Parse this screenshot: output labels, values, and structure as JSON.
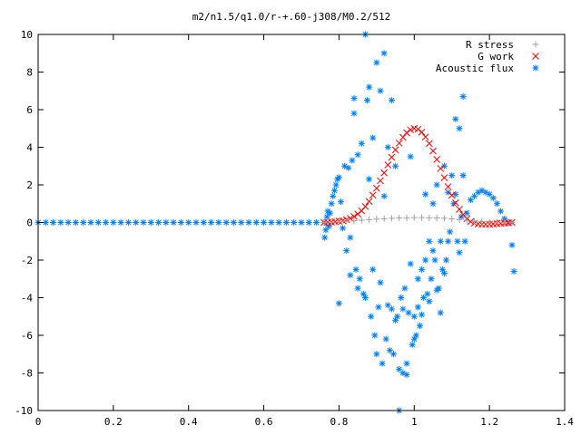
{
  "chart_data": {
    "type": "scatter",
    "title": "m2/n1.5/q1.0/r-+.60-j308/M0.2/512",
    "xlabel": "",
    "ylabel": "",
    "xlim": [
      0,
      1.4
    ],
    "ylim": [
      -10,
      10
    ],
    "x_ticks": [
      0,
      0.2,
      0.4,
      0.6,
      0.8,
      1,
      1.2,
      1.4
    ],
    "x_tick_labels": [
      "0",
      "0.2",
      "0.4",
      "0.6",
      "0.8",
      "1",
      "1.2",
      "1.4"
    ],
    "y_ticks": [
      -10,
      -8,
      -6,
      -4,
      -2,
      0,
      2,
      4,
      6,
      8,
      10
    ],
    "y_tick_labels": [
      "-10",
      "-8",
      "-6",
      "-4",
      "-2",
      "0",
      "2",
      "4",
      "6",
      "8",
      "10"
    ],
    "grid": false,
    "legend_position": "top-right",
    "series": [
      {
        "name": "R stress",
        "marker": "plus",
        "color": "#a0a0a0",
        "x": [
          0.76,
          0.78,
          0.8,
          0.82,
          0.84,
          0.86,
          0.88,
          0.9,
          0.92,
          0.94,
          0.96,
          0.98,
          1.0,
          1.02,
          1.04,
          1.06,
          1.08,
          1.1,
          1.12,
          1.14,
          1.16,
          1.18,
          1.2,
          1.22,
          1.24,
          1.26
        ],
        "y": [
          0.0,
          0.01,
          0.03,
          0.06,
          0.09,
          0.12,
          0.15,
          0.18,
          0.2,
          0.22,
          0.24,
          0.25,
          0.26,
          0.26,
          0.25,
          0.24,
          0.22,
          0.19,
          0.15,
          0.11,
          0.07,
          0.04,
          0.02,
          0.01,
          0.0,
          0.0
        ]
      },
      {
        "name": "G work",
        "marker": "cross",
        "color": "#ff0000",
        "x": [
          0.76,
          0.77,
          0.78,
          0.79,
          0.8,
          0.81,
          0.82,
          0.83,
          0.84,
          0.85,
          0.86,
          0.87,
          0.88,
          0.89,
          0.9,
          0.91,
          0.92,
          0.93,
          0.94,
          0.95,
          0.96,
          0.97,
          0.98,
          0.99,
          1.0,
          1.01,
          1.02,
          1.03,
          1.04,
          1.05,
          1.06,
          1.07,
          1.08,
          1.09,
          1.1,
          1.11,
          1.12,
          1.13,
          1.14,
          1.15,
          1.16,
          1.17,
          1.18,
          1.19,
          1.2,
          1.21,
          1.22,
          1.23,
          1.24,
          1.25,
          1.26
        ],
        "y": [
          0.0,
          0.01,
          0.02,
          0.04,
          0.07,
          0.1,
          0.15,
          0.22,
          0.32,
          0.45,
          0.62,
          0.85,
          1.12,
          1.45,
          1.82,
          2.22,
          2.64,
          3.06,
          3.47,
          3.86,
          4.22,
          4.53,
          4.77,
          4.93,
          5.0,
          4.96,
          4.8,
          4.55,
          4.2,
          3.8,
          3.35,
          2.87,
          2.38,
          1.9,
          1.45,
          1.05,
          0.7,
          0.42,
          0.2,
          0.05,
          -0.04,
          -0.08,
          -0.1,
          -0.1,
          -0.09,
          -0.08,
          -0.06,
          -0.05,
          -0.03,
          -0.02,
          0.0
        ]
      },
      {
        "name": "Acoustic flux",
        "marker": "star",
        "color": "#0080ff",
        "x": [
          0.0,
          0.02,
          0.04,
          0.06,
          0.08,
          0.1,
          0.12,
          0.14,
          0.16,
          0.18,
          0.2,
          0.22,
          0.24,
          0.26,
          0.28,
          0.3,
          0.32,
          0.34,
          0.36,
          0.38,
          0.4,
          0.42,
          0.44,
          0.46,
          0.48,
          0.5,
          0.52,
          0.54,
          0.56,
          0.58,
          0.6,
          0.62,
          0.64,
          0.66,
          0.68,
          0.7,
          0.72,
          0.74,
          0.76,
          0.762,
          0.765,
          0.768,
          0.77,
          0.773,
          0.776,
          0.78,
          0.784,
          0.788,
          0.792,
          0.796,
          0.8,
          0.805,
          0.81,
          0.815,
          0.82,
          0.825,
          0.83,
          0.835,
          0.84,
          0.845,
          0.85,
          0.855,
          0.86,
          0.865,
          0.87,
          0.875,
          0.88,
          0.885,
          0.89,
          0.895,
          0.9,
          0.905,
          0.91,
          0.915,
          0.92,
          0.925,
          0.93,
          0.935,
          0.94,
          0.945,
          0.95,
          0.955,
          0.96,
          0.965,
          0.97,
          0.975,
          0.98,
          0.985,
          0.99,
          0.995,
          1.0,
          1.005,
          1.01,
          1.015,
          1.02,
          1.025,
          1.03,
          1.035,
          1.04,
          1.045,
          1.05,
          1.055,
          1.06,
          1.065,
          1.07,
          1.075,
          1.08,
          1.085,
          1.09,
          1.095,
          1.1,
          1.105,
          1.11,
          1.115,
          1.12,
          1.125,
          1.13,
          1.135,
          1.14,
          1.15,
          1.16,
          1.17,
          1.18,
          1.19,
          1.2,
          1.21,
          1.22,
          1.23,
          1.24,
          1.25,
          1.26,
          1.265,
          0.8,
          0.83,
          0.85,
          0.87,
          0.89,
          0.91,
          0.93,
          0.95,
          0.97,
          0.99,
          1.01,
          1.03,
          1.05,
          1.07,
          1.09,
          1.11,
          1.13,
          0.84,
          0.88,
          0.92,
          0.96,
          1.0,
          1.04,
          1.08,
          1.12,
          0.9,
          0.94,
          0.98,
          1.02,
          1.06
        ],
        "y": [
          0,
          0,
          0,
          0,
          0,
          0,
          0,
          0,
          0,
          0,
          0,
          0,
          0,
          0,
          0,
          0,
          0,
          0,
          0,
          0,
          0,
          0,
          0,
          0,
          0,
          0,
          0,
          0,
          0,
          0,
          0,
          0,
          0,
          0,
          0,
          0,
          0,
          0,
          0.0,
          -0.8,
          -0.4,
          0.3,
          0.6,
          -0.2,
          0.5,
          1.0,
          1.4,
          1.7,
          2.0,
          2.3,
          2.4,
          1.1,
          -0.3,
          3.0,
          -1.5,
          2.9,
          -0.8,
          3.3,
          5.8,
          -2.5,
          3.6,
          -3.0,
          4.2,
          -3.8,
          10.0,
          6.5,
          7.2,
          -5.0,
          4.5,
          -6.0,
          8.5,
          -4.5,
          7.0,
          -7.5,
          9.0,
          -6.2,
          4.0,
          -6.8,
          6.5,
          -7.0,
          3.0,
          -5.0,
          -10.0,
          -4.0,
          -8.0,
          -3.5,
          -7.5,
          -4.8,
          3.5,
          -6.5,
          -5.0,
          -6.0,
          -4.5,
          -5.5,
          -2.5,
          -4.0,
          1.5,
          -3.8,
          -1.0,
          -3.0,
          1.0,
          -2.0,
          2.0,
          -3.5,
          -1.0,
          -2.5,
          3.0,
          -2.0,
          -1.0,
          -0.5,
          2.5,
          1.0,
          1.5,
          -1.0,
          5.0,
          0.3,
          2.5,
          -1.0,
          0.5,
          1.2,
          1.4,
          1.6,
          1.7,
          1.6,
          1.5,
          1.3,
          1.0,
          0.6,
          0.2,
          0.0,
          -1.2,
          -2.6,
          -4.3,
          -2.8,
          -3.5,
          -4.0,
          -2.5,
          -3.2,
          -4.4,
          -5.2,
          -4.6,
          -2.2,
          -3.0,
          -2.0,
          -1.5,
          -4.8,
          1.6,
          5.5,
          6.7,
          6.6,
          2.3,
          1.4,
          -7.8,
          -6.2,
          -4.2,
          -2.7,
          -1.6,
          -7.0,
          -4.6,
          -8.1,
          -4.9,
          -3.6
        ]
      }
    ]
  }
}
